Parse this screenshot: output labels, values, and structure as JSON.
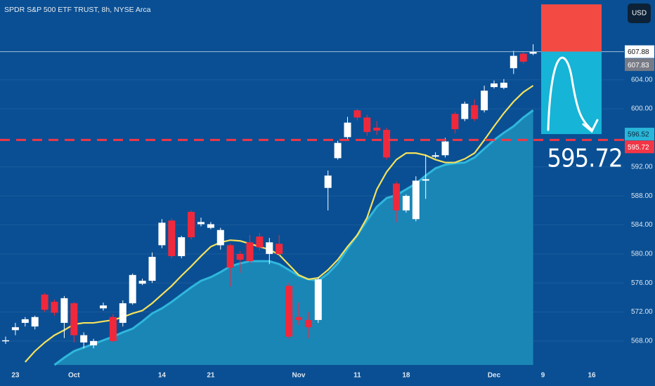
{
  "chart_data": {
    "type": "candlestick",
    "title": "SPDR S&P 500 ETF TRUST, 8h, NYSE Arca",
    "currency": "USD",
    "categories": [
      null,
      "23",
      null,
      null,
      null,
      null,
      null,
      "Oct",
      null,
      null,
      null,
      null,
      null,
      null,
      null,
      null,
      "14",
      null,
      null,
      null,
      null,
      "21",
      null,
      null,
      null,
      null,
      null,
      null,
      null,
      null,
      "Nov",
      null,
      null,
      null,
      null,
      null,
      "11",
      null,
      null,
      null,
      null,
      "18",
      null,
      null,
      null,
      null,
      null,
      null,
      null,
      null,
      "Dec",
      null,
      null,
      null,
      null,
      "9",
      null,
      null,
      null,
      null,
      "16",
      null
    ],
    "open": [
      568.0,
      569.5,
      570.5,
      570.0,
      574.4,
      573.4,
      570.5,
      573.2,
      567.8,
      567.4,
      572.5,
      571.3,
      570.5,
      573.2,
      575.9,
      576.3,
      581.2,
      584.6,
      579.7,
      585.8,
      584.1,
      583.6,
      581.2,
      581.2,
      580.0,
      581.6,
      582.4,
      580.0,
      581.4,
      575.6,
      571.3,
      570.9,
      570.9,
      589.1,
      593.2,
      596.1,
      599.8,
      598.8,
      597.4,
      597.1,
      589.7,
      586.0,
      584.8,
      590.1,
      593.4,
      593.6,
      599.3,
      598.6,
      600.5,
      599.8,
      603.0,
      602.9,
      605.6,
      607.6,
      607.6,
      null,
      null,
      null,
      null,
      null,
      null,
      null
    ],
    "high": [
      568.6,
      570.5,
      571.3,
      571.5,
      574.6,
      573.7,
      574.2,
      573.4,
      569.2,
      568.3,
      573.3,
      571.7,
      573.6,
      577.3,
      576.6,
      580.2,
      584.8,
      584.9,
      582.5,
      586.0,
      585.0,
      584.4,
      583.6,
      581.4,
      580.4,
      582.6,
      582.9,
      582.2,
      582.6,
      576.0,
      573.3,
      572.0,
      576.8,
      591.5,
      595.6,
      598.9,
      600.0,
      599.2,
      598.3,
      597.4,
      590.0,
      588.2,
      590.7,
      593.7,
      594.0,
      596.0,
      599.6,
      601.0,
      601.3,
      603.2,
      603.9,
      604.1,
      608.0,
      607.9,
      608.9,
      null,
      null,
      null,
      null,
      null,
      null,
      null
    ],
    "low": [
      567.6,
      568.8,
      570.0,
      569.6,
      572.0,
      571.5,
      568.4,
      567.8,
      567.0,
      567.0,
      572.2,
      567.8,
      570.0,
      573.0,
      575.7,
      576.0,
      580.8,
      579.4,
      579.4,
      582.0,
      583.8,
      583.4,
      580.6,
      575.5,
      577.4,
      578.6,
      580.5,
      578.6,
      579.8,
      568.3,
      570.2,
      568.4,
      570.5,
      586.0,
      593.0,
      595.8,
      598.4,
      596.3,
      596.4,
      593.0,
      584.4,
      585.7,
      584.5,
      587.6,
      593.2,
      593.3,
      596.6,
      598.3,
      598.3,
      599.5,
      602.8,
      602.7,
      604.8,
      606.2,
      607.4,
      null,
      null,
      null,
      null,
      null,
      null,
      null
    ],
    "close": [
      568.1,
      569.9,
      571.0,
      571.3,
      572.3,
      571.9,
      573.9,
      568.8,
      568.8,
      568.0,
      572.9,
      568.0,
      573.2,
      577.1,
      576.3,
      579.6,
      584.3,
      579.7,
      582.3,
      582.3,
      584.4,
      584.1,
      583.3,
      578.1,
      579.2,
      579.0,
      580.9,
      581.6,
      580.0,
      568.6,
      570.9,
      569.9,
      576.5,
      590.8,
      595.3,
      598.1,
      598.8,
      596.8,
      597.0,
      593.3,
      586.0,
      588.0,
      590.1,
      590.3,
      593.6,
      595.5,
      597.2,
      600.7,
      598.6,
      602.5,
      603.5,
      603.6,
      607.3,
      606.5,
      607.88,
      null,
      null,
      null,
      null,
      null,
      null,
      null
    ],
    "up_color": "#ffffff",
    "down_color": "#f0283c",
    "line_series": {
      "color": "#f5e25c",
      "values": [
        null,
        null,
        565.1,
        566.6,
        567.8,
        568.8,
        569.5,
        570.3,
        570.5,
        570.5,
        570.7,
        570.9,
        571.3,
        571.8,
        572.2,
        573.2,
        574.4,
        575.6,
        577.0,
        578.3,
        579.7,
        581.0,
        581.6,
        581.9,
        581.8,
        581.4,
        581.0,
        580.6,
        579.9,
        578.5,
        577.1,
        576.5,
        576.7,
        577.8,
        579.2,
        581.0,
        582.6,
        585.0,
        588.9,
        591.3,
        593.0,
        593.9,
        593.9,
        593.6,
        593.0,
        592.6,
        592.6,
        593.1,
        593.9,
        595.7,
        597.6,
        599.4,
        601.0,
        602.3,
        603.2,
        null,
        null,
        null,
        null,
        null,
        null,
        null
      ]
    },
    "area_series": {
      "color": "#2fb7dc",
      "fill": "#1a86b6",
      "values": [
        null,
        null,
        null,
        null,
        null,
        564.7,
        565.7,
        566.6,
        567.1,
        567.6,
        568.1,
        568.6,
        569.2,
        569.7,
        570.7,
        571.8,
        572.5,
        573.4,
        574.4,
        575.4,
        576.3,
        576.8,
        577.5,
        578.3,
        578.7,
        579.0,
        579.0,
        579.0,
        578.6,
        577.8,
        577.0,
        576.5,
        576.3,
        577.3,
        578.7,
        580.7,
        582.6,
        584.6,
        586.5,
        587.7,
        588.1,
        588.9,
        589.7,
        590.8,
        591.8,
        592.3,
        592.5,
        592.6,
        593.3,
        594.5,
        595.7,
        596.7,
        597.6,
        598.8,
        599.8,
        null,
        null,
        null,
        null,
        null,
        null,
        null
      ]
    },
    "ylim": [
      564.7,
      615.0
    ],
    "yticks": [
      {
        "value": 568,
        "label": "568.00"
      },
      {
        "value": 572,
        "label": "572.00"
      },
      {
        "value": 576,
        "label": "576.00"
      },
      {
        "value": 580,
        "label": "580.00"
      },
      {
        "value": 584,
        "label": "584.00"
      },
      {
        "value": 588,
        "label": "588.00"
      },
      {
        "value": 592,
        "label": "592.00"
      },
      {
        "value": 600,
        "label": "600.00"
      },
      {
        "value": 604,
        "label": "604.00"
      }
    ],
    "last_price": 607.88,
    "prev_price": 607.83,
    "target_price": 596.52,
    "level_price": 595.72,
    "zone_top": 614.4
  }
}
